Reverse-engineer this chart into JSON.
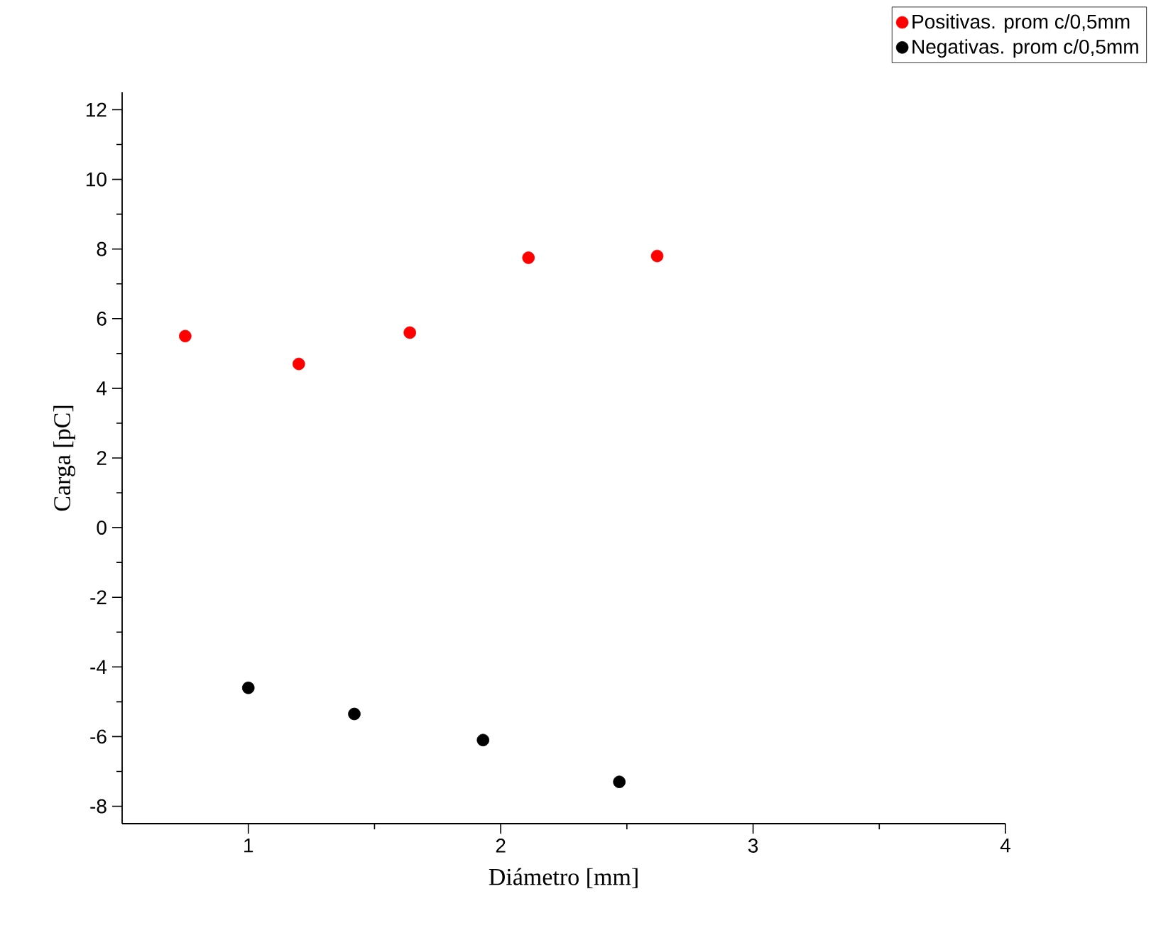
{
  "chart_data": {
    "type": "scatter",
    "xlabel": "Diámetro [mm]",
    "ylabel": "Carga [pC]",
    "xlim": [
      0.5,
      4
    ],
    "ylim": [
      -8.5,
      12.5
    ],
    "xticks": [
      1,
      2,
      3,
      4
    ],
    "yticks": [
      -8,
      -6,
      -4,
      -2,
      0,
      2,
      4,
      6,
      8,
      10,
      12
    ],
    "marker": "circle",
    "legend": "top right",
    "series": [
      {
        "name": "Positivas. prom c/0,5mm",
        "color": "#ff0000",
        "x": [
          0.75,
          1.2,
          1.64,
          2.11,
          2.62
        ],
        "values": [
          5.5,
          4.7,
          5.6,
          7.75,
          7.8
        ]
      },
      {
        "name": "Negativas. prom c/0,5mm",
        "color": "#000000",
        "x": [
          1.0,
          1.42,
          1.93,
          2.47
        ],
        "values": [
          -4.6,
          -5.35,
          -6.1,
          -7.3
        ]
      }
    ]
  }
}
